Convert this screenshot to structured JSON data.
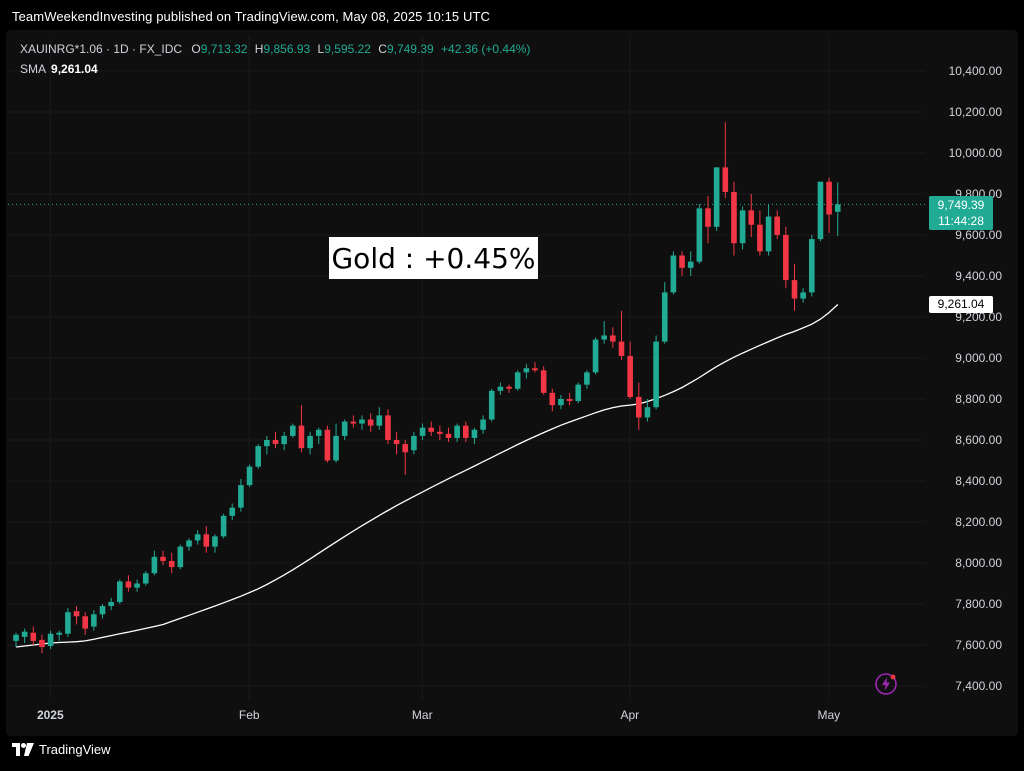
{
  "header": {
    "publisher_line": "TeamWeekendInvesting published on TradingView.com, May 08, 2025 10:15 UTC"
  },
  "legend": {
    "symbol": "XAUINRG*1.06 · 1D · FX_IDC",
    "o_label": "O",
    "o_value": "9,713.32",
    "h_label": "H",
    "h_value": "9,856.93",
    "l_label": "L",
    "l_value": "9,595.22",
    "c_label": "C",
    "c_value": "9,749.39",
    "change": "+42.36 (+0.44%)",
    "sma_label": "SMA",
    "sma_value": "9,261.04"
  },
  "annotation": {
    "text": "Gold : +0.45%"
  },
  "price_tag": {
    "price": "9,749.39",
    "countdown": "11:44:28"
  },
  "sma_tag": {
    "value": "9,261.04"
  },
  "brand": {
    "name": "TradingView"
  },
  "colors": {
    "up": "#22ab94",
    "down": "#f23645",
    "sma": "#ffffff",
    "background": "#0f0f0f"
  },
  "icons": {
    "brand": "tradingview-logo-icon",
    "bolt": "lightning-bolt-icon"
  },
  "chart_data": {
    "type": "candlestick",
    "ylim": [
      7300,
      10520
    ],
    "y_ticks": [
      "7,400.00",
      "7,600.00",
      "7,800.00",
      "8,000.00",
      "8,200.00",
      "8,400.00",
      "8,600.00",
      "8,800.00",
      "9,000.00",
      "9,200.00",
      "9,400.00",
      "9,600.00",
      "9,800.00",
      "10,000.00",
      "10,200.00",
      "10,400.00"
    ],
    "y_tick_values": [
      7400,
      7600,
      7800,
      8000,
      8200,
      8400,
      8600,
      8800,
      9000,
      9200,
      9400,
      9600,
      9800,
      10000,
      10200,
      10400
    ],
    "x_labels": [
      {
        "label": "2025",
        "index": 2
      },
      {
        "label": "Feb",
        "index": 25
      },
      {
        "label": "Mar",
        "index": 45
      },
      {
        "label": "Apr",
        "index": 69
      },
      {
        "label": "May",
        "index": 92
      }
    ],
    "candles": [
      {
        "o": 7620,
        "h": 7660,
        "l": 7590,
        "c": 7650
      },
      {
        "o": 7640,
        "h": 7680,
        "l": 7610,
        "c": 7665
      },
      {
        "o": 7660,
        "h": 7690,
        "l": 7600,
        "c": 7620
      },
      {
        "o": 7625,
        "h": 7650,
        "l": 7560,
        "c": 7590
      },
      {
        "o": 7595,
        "h": 7670,
        "l": 7580,
        "c": 7655
      },
      {
        "o": 7650,
        "h": 7670,
        "l": 7620,
        "c": 7660
      },
      {
        "o": 7655,
        "h": 7780,
        "l": 7640,
        "c": 7760
      },
      {
        "o": 7765,
        "h": 7790,
        "l": 7700,
        "c": 7740
      },
      {
        "o": 7740,
        "h": 7760,
        "l": 7650,
        "c": 7680
      },
      {
        "o": 7690,
        "h": 7770,
        "l": 7670,
        "c": 7750
      },
      {
        "o": 7750,
        "h": 7800,
        "l": 7730,
        "c": 7790
      },
      {
        "o": 7790,
        "h": 7830,
        "l": 7770,
        "c": 7810
      },
      {
        "o": 7810,
        "h": 7920,
        "l": 7800,
        "c": 7910
      },
      {
        "o": 7910,
        "h": 7940,
        "l": 7860,
        "c": 7880
      },
      {
        "o": 7880,
        "h": 7920,
        "l": 7860,
        "c": 7900
      },
      {
        "o": 7900,
        "h": 7960,
        "l": 7890,
        "c": 7950
      },
      {
        "o": 7950,
        "h": 8060,
        "l": 7940,
        "c": 8030
      },
      {
        "o": 8030,
        "h": 8060,
        "l": 7990,
        "c": 8010
      },
      {
        "o": 8010,
        "h": 8050,
        "l": 7950,
        "c": 7980
      },
      {
        "o": 7980,
        "h": 8090,
        "l": 7970,
        "c": 8080
      },
      {
        "o": 8080,
        "h": 8120,
        "l": 8060,
        "c": 8110
      },
      {
        "o": 8110,
        "h": 8160,
        "l": 8090,
        "c": 8140
      },
      {
        "o": 8140,
        "h": 8180,
        "l": 8050,
        "c": 8080
      },
      {
        "o": 8080,
        "h": 8140,
        "l": 8050,
        "c": 8130
      },
      {
        "o": 8130,
        "h": 8240,
        "l": 8120,
        "c": 8230
      },
      {
        "o": 8230,
        "h": 8290,
        "l": 8210,
        "c": 8270
      },
      {
        "o": 8270,
        "h": 8410,
        "l": 8250,
        "c": 8380
      },
      {
        "o": 8380,
        "h": 8480,
        "l": 8370,
        "c": 8470
      },
      {
        "o": 8470,
        "h": 8580,
        "l": 8460,
        "c": 8570
      },
      {
        "o": 8570,
        "h": 8620,
        "l": 8530,
        "c": 8600
      },
      {
        "o": 8600,
        "h": 8640,
        "l": 8560,
        "c": 8580
      },
      {
        "o": 8580,
        "h": 8640,
        "l": 8550,
        "c": 8620
      },
      {
        "o": 8620,
        "h": 8680,
        "l": 8610,
        "c": 8670
      },
      {
        "o": 8670,
        "h": 8770,
        "l": 8540,
        "c": 8560
      },
      {
        "o": 8560,
        "h": 8640,
        "l": 8530,
        "c": 8620
      },
      {
        "o": 8620,
        "h": 8660,
        "l": 8580,
        "c": 8650
      },
      {
        "o": 8650,
        "h": 8670,
        "l": 8490,
        "c": 8500
      },
      {
        "o": 8500,
        "h": 8680,
        "l": 8490,
        "c": 8620
      },
      {
        "o": 8620,
        "h": 8700,
        "l": 8600,
        "c": 8690
      },
      {
        "o": 8690,
        "h": 8720,
        "l": 8660,
        "c": 8680
      },
      {
        "o": 8680,
        "h": 8720,
        "l": 8650,
        "c": 8700
      },
      {
        "o": 8700,
        "h": 8730,
        "l": 8640,
        "c": 8670
      },
      {
        "o": 8670,
        "h": 8760,
        "l": 8650,
        "c": 8720
      },
      {
        "o": 8720,
        "h": 8750,
        "l": 8580,
        "c": 8600
      },
      {
        "o": 8600,
        "h": 8640,
        "l": 8530,
        "c": 8580
      },
      {
        "o": 8580,
        "h": 8600,
        "l": 8430,
        "c": 8540
      },
      {
        "o": 8550,
        "h": 8640,
        "l": 8530,
        "c": 8620
      },
      {
        "o": 8620,
        "h": 8680,
        "l": 8600,
        "c": 8660
      },
      {
        "o": 8660,
        "h": 8690,
        "l": 8620,
        "c": 8640
      },
      {
        "o": 8640,
        "h": 8670,
        "l": 8600,
        "c": 8630
      },
      {
        "o": 8630,
        "h": 8660,
        "l": 8590,
        "c": 8610
      },
      {
        "o": 8610,
        "h": 8680,
        "l": 8590,
        "c": 8670
      },
      {
        "o": 8670,
        "h": 8690,
        "l": 8590,
        "c": 8610
      },
      {
        "o": 8610,
        "h": 8660,
        "l": 8580,
        "c": 8650
      },
      {
        "o": 8650,
        "h": 8720,
        "l": 8630,
        "c": 8700
      },
      {
        "o": 8700,
        "h": 8850,
        "l": 8690,
        "c": 8840
      },
      {
        "o": 8840,
        "h": 8880,
        "l": 8820,
        "c": 8860
      },
      {
        "o": 8860,
        "h": 8870,
        "l": 8830,
        "c": 8850
      },
      {
        "o": 8850,
        "h": 8940,
        "l": 8840,
        "c": 8930
      },
      {
        "o": 8930,
        "h": 8970,
        "l": 8900,
        "c": 8950
      },
      {
        "o": 8950,
        "h": 8980,
        "l": 8930,
        "c": 8940
      },
      {
        "o": 8940,
        "h": 8960,
        "l": 8820,
        "c": 8830
      },
      {
        "o": 8830,
        "h": 8850,
        "l": 8740,
        "c": 8770
      },
      {
        "o": 8770,
        "h": 8820,
        "l": 8750,
        "c": 8800
      },
      {
        "o": 8800,
        "h": 8830,
        "l": 8770,
        "c": 8790
      },
      {
        "o": 8790,
        "h": 8880,
        "l": 8780,
        "c": 8870
      },
      {
        "o": 8870,
        "h": 8940,
        "l": 8850,
        "c": 8930
      },
      {
        "o": 8930,
        "h": 9100,
        "l": 8920,
        "c": 9090
      },
      {
        "o": 9090,
        "h": 9180,
        "l": 9070,
        "c": 9110
      },
      {
        "o": 9110,
        "h": 9150,
        "l": 9050,
        "c": 9080
      },
      {
        "o": 9080,
        "h": 9230,
        "l": 8990,
        "c": 9010
      },
      {
        "o": 9010,
        "h": 9080,
        "l": 8800,
        "c": 8810
      },
      {
        "o": 8810,
        "h": 8880,
        "l": 8650,
        "c": 8710
      },
      {
        "o": 8710,
        "h": 8800,
        "l": 8690,
        "c": 8760
      },
      {
        "o": 8760,
        "h": 9110,
        "l": 8750,
        "c": 9080
      },
      {
        "o": 9080,
        "h": 9370,
        "l": 9070,
        "c": 9320
      },
      {
        "o": 9320,
        "h": 9520,
        "l": 9310,
        "c": 9500
      },
      {
        "o": 9500,
        "h": 9520,
        "l": 9400,
        "c": 9440
      },
      {
        "o": 9440,
        "h": 9520,
        "l": 9400,
        "c": 9470
      },
      {
        "o": 9470,
        "h": 9750,
        "l": 9460,
        "c": 9730
      },
      {
        "o": 9730,
        "h": 9790,
        "l": 9560,
        "c": 9640
      },
      {
        "o": 9640,
        "h": 9930,
        "l": 9620,
        "c": 9930
      },
      {
        "o": 9930,
        "h": 10150,
        "l": 9780,
        "c": 9810
      },
      {
        "o": 9810,
        "h": 9860,
        "l": 9500,
        "c": 9560
      },
      {
        "o": 9560,
        "h": 9740,
        "l": 9530,
        "c": 9720
      },
      {
        "o": 9720,
        "h": 9800,
        "l": 9590,
        "c": 9650
      },
      {
        "o": 9650,
        "h": 9720,
        "l": 9500,
        "c": 9520
      },
      {
        "o": 9520,
        "h": 9750,
        "l": 9500,
        "c": 9690
      },
      {
        "o": 9690,
        "h": 9720,
        "l": 9580,
        "c": 9600
      },
      {
        "o": 9600,
        "h": 9640,
        "l": 9340,
        "c": 9380
      },
      {
        "o": 9380,
        "h": 9460,
        "l": 9230,
        "c": 9290
      },
      {
        "o": 9290,
        "h": 9340,
        "l": 9270,
        "c": 9320
      },
      {
        "o": 9320,
        "h": 9600,
        "l": 9300,
        "c": 9580
      },
      {
        "o": 9580,
        "h": 9860,
        "l": 9570,
        "c": 9860
      },
      {
        "o": 9860,
        "h": 9880,
        "l": 9610,
        "c": 9700
      },
      {
        "o": 9713.32,
        "h": 9856.93,
        "l": 9595.22,
        "c": 9749.39
      }
    ],
    "sma": [
      7590,
      7595,
      7600,
      7605,
      7610,
      7612,
      7614,
      7616,
      7620,
      7628,
      7637,
      7646,
      7655,
      7663,
      7672,
      7681,
      7690,
      7700,
      7715,
      7730,
      7745,
      7760,
      7775,
      7790,
      7806,
      7822,
      7838,
      7856,
      7874,
      7895,
      7918,
      7942,
      7967,
      7993,
      8020,
      8048,
      8075,
      8103,
      8130,
      8156,
      8182,
      8207,
      8232,
      8256,
      8280,
      8303,
      8325,
      8347,
      8369,
      8390,
      8411,
      8432,
      8452,
      8473,
      8494,
      8515,
      8536,
      8557,
      8578,
      8598,
      8617,
      8636,
      8654,
      8672,
      8688,
      8703,
      8718,
      8733,
      8747,
      8758,
      8766,
      8770,
      8776,
      8788,
      8802,
      8818,
      8836,
      8856,
      8880,
      8905,
      8932,
      8958,
      8982,
      9004,
      9024,
      9043,
      9062,
      9080,
      9098,
      9115,
      9130,
      9147,
      9165,
      9190,
      9222,
      9261.04
    ]
  }
}
